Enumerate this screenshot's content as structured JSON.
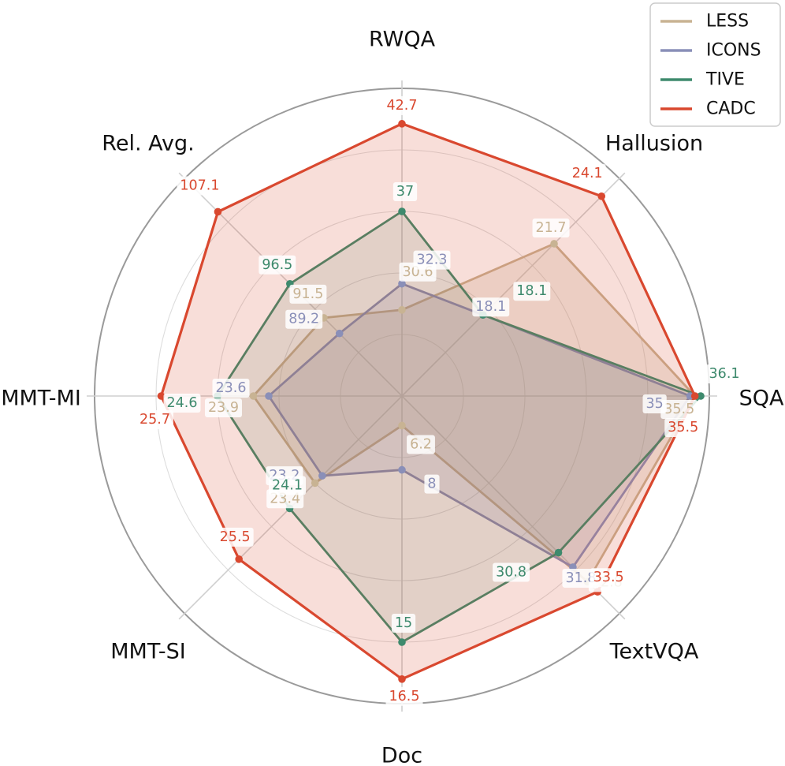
{
  "chart_data": {
    "type": "radar",
    "axes": [
      "RWQA",
      "Hallusion",
      "SQA",
      "TextVQA",
      "Doc",
      "MMT-SI",
      "MMT-MI",
      "Rel. Avg."
    ],
    "series": [
      {
        "name": "LESS",
        "color": "#c8b393",
        "values": [
          30.6,
          21.7,
          35.5,
          32.8,
          6.2,
          23.4,
          23.9,
          91.5
        ]
      },
      {
        "name": "ICONS",
        "color": "#8a8fb8",
        "values": [
          32.3,
          18.1,
          35.0,
          31.8,
          8.0,
          23.2,
          23.6,
          89.2
        ]
      },
      {
        "name": "TIVE",
        "color": "#3e8a6d",
        "values": [
          37.0,
          18.1,
          36.1,
          30.8,
          15.0,
          24.1,
          24.6,
          96.5
        ]
      },
      {
        "name": "CADC",
        "color": "#d9482f",
        "values": [
          42.7,
          24.1,
          35.5,
          33.5,
          16.5,
          25.5,
          25.7,
          107.1
        ]
      }
    ],
    "axis_ranges": [
      [
        25,
        45
      ],
      [
        14,
        25
      ],
      [
        5,
        37
      ],
      [
        20,
        35
      ],
      [
        5,
        17.5
      ],
      [
        21,
        27
      ],
      [
        21,
        27
      ],
      [
        80,
        112
      ]
    ],
    "grid": true,
    "legend_position": "top-right"
  }
}
